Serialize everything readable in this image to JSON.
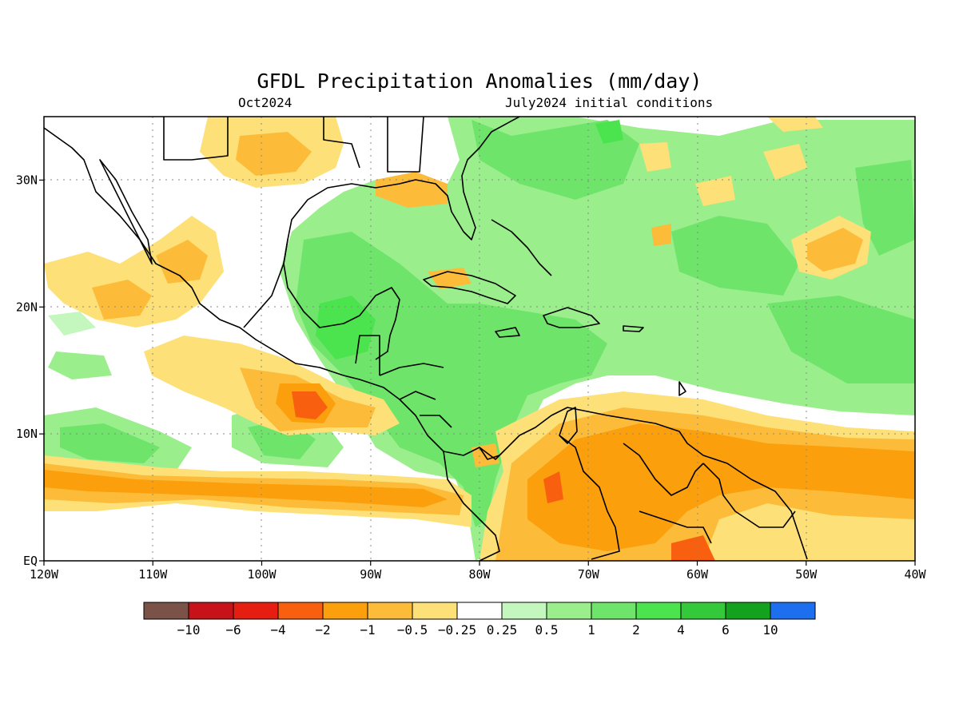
{
  "title": "GFDL Precipitation Anomalies (mm/day)",
  "subtitle_left": "Oct2024",
  "subtitle_right": "July2024 initial conditions",
  "axes": {
    "lon_ticks": [
      "120W",
      "110W",
      "100W",
      "90W",
      "80W",
      "70W",
      "60W",
      "50W",
      "40W"
    ],
    "lat_ticks": [
      "EQ",
      "10N",
      "20N",
      "30N"
    ],
    "lon_range": [
      -120,
      -40
    ],
    "lat_range": [
      0,
      35
    ],
    "grid": "dotted"
  },
  "colorbar": {
    "colors": [
      "#7a5248",
      "#c8121a",
      "#e61e12",
      "#f8600f",
      "#fb9f0c",
      "#fcbc3a",
      "#fde077",
      "#ffffff",
      "#c4f7bd",
      "#9bee8c",
      "#6ee46a",
      "#4be34e",
      "#33c93a",
      "#13a21d",
      "#1e6ff0"
    ],
    "labels": [
      "−10",
      "−6",
      "−4",
      "−2",
      "−1",
      "−0.5",
      "−0.25",
      "0.25",
      "0.5",
      "1",
      "2",
      "4",
      "6",
      "10"
    ]
  }
}
